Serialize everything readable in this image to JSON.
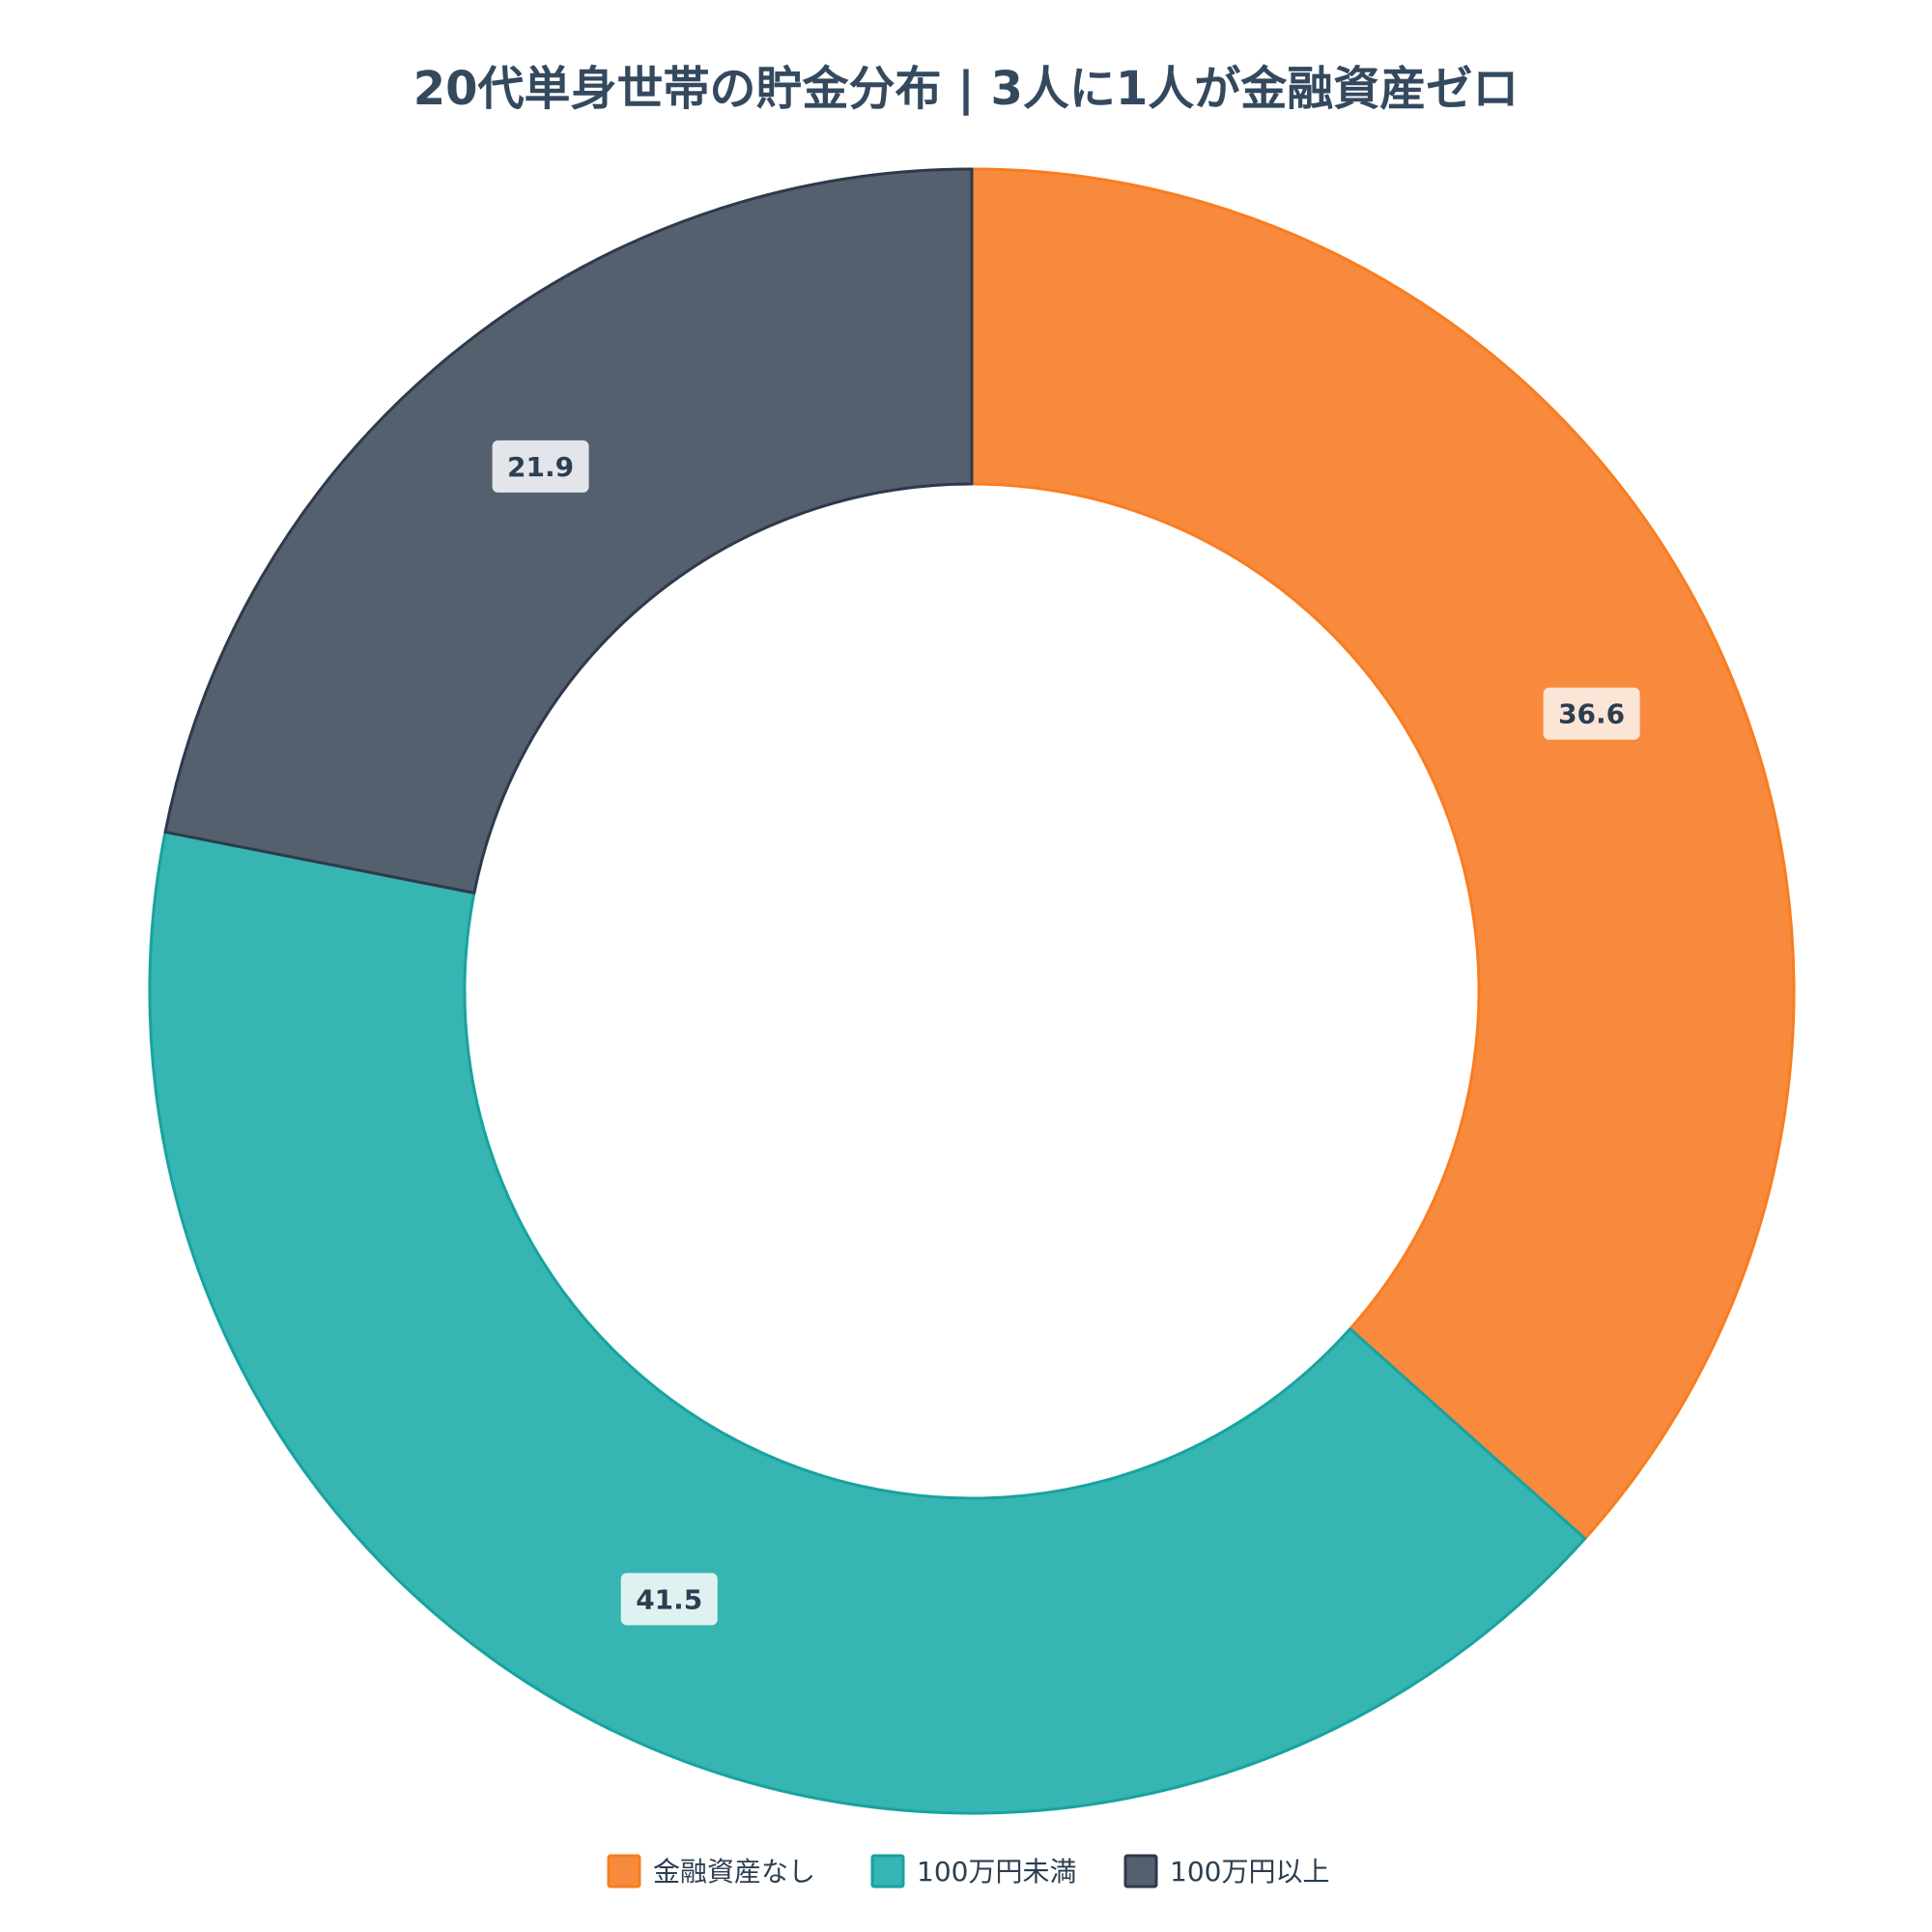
{
  "chart_data": {
    "type": "pie",
    "donut": true,
    "title": "20代単身世帯の貯金分布 | 3人に1人が金融資産ゼロ",
    "categories": [
      "金融資産なし",
      "100万円未満",
      "100万円以上"
    ],
    "values": [
      36.6,
      41.5,
      21.9
    ],
    "colors": [
      "#f78a3c",
      "#36b5b3",
      "#54606e"
    ],
    "stroke_colors": [
      "#f97d1f",
      "#17a3a0",
      "#2e3a4b"
    ],
    "label_background_colors": [
      "#fbe5d7",
      "#dff2f1",
      "#e2e5e9"
    ],
    "data_labels": [
      "36.6",
      "41.5",
      "21.9"
    ],
    "legend_position": "bottom",
    "start_angle": "12 o'clock",
    "direction": "clockwise"
  }
}
